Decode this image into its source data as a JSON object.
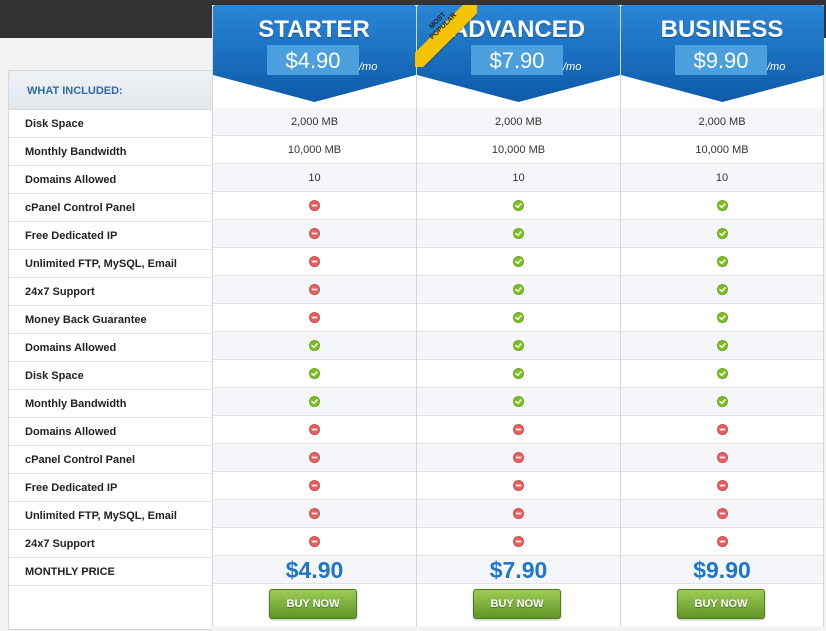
{
  "features": {
    "header": "WHAT INCLUDED:",
    "rows": [
      "Disk Space",
      "Monthly Bandwidth",
      "Domains Allowed",
      "cPanel Control Panel",
      "Free Dedicated IP",
      "Unlimited FTP, MySQL, Email",
      "24x7 Support",
      "Money Back Guarantee",
      "Domains Allowed",
      "Disk Space",
      "Monthly Bandwidth",
      "Domains Allowed",
      "cPanel Control Panel",
      "Free Dedicated IP",
      "Unlimited FTP, MySQL, Email",
      "24x7 Support",
      "MONTHLY PRICE"
    ]
  },
  "colors": {
    "header_blue": "#1c6fc2",
    "price_blue": "#1c76c9",
    "check_green": "#7cc11f",
    "cross_red": "#e04848",
    "buy_green": "#6fa32f",
    "ribbon_yellow": "#f5c400"
  },
  "plans": [
    {
      "name": "STARTER",
      "price": "$4.90",
      "unit": "/mo",
      "badge": "",
      "text_values": [
        "2,000 MB",
        "10,000 MB",
        "10"
      ],
      "icons": [
        "no",
        "no",
        "no",
        "no",
        "no",
        "yes",
        "yes",
        "yes",
        "no",
        "no",
        "no",
        "no",
        "no"
      ],
      "monthly_price": "$4.90",
      "button": "BUY NOW"
    },
    {
      "name": "ADVANCED",
      "price": "$7.90",
      "unit": "/mo",
      "badge": "MOST POPULAR",
      "badge_line1": "MOST",
      "badge_line2": "POPULAR",
      "text_values": [
        "2,000 MB",
        "10,000 MB",
        "10"
      ],
      "icons": [
        "yes",
        "yes",
        "yes",
        "yes",
        "yes",
        "yes",
        "yes",
        "yes",
        "no",
        "no",
        "no",
        "no",
        "no"
      ],
      "monthly_price": "$7.90",
      "button": "BUY NOW"
    },
    {
      "name": "BUSINESS",
      "price": "$9.90",
      "unit": "/mo",
      "badge": "",
      "text_values": [
        "2,000 MB",
        "10,000 MB",
        "10"
      ],
      "icons": [
        "yes",
        "yes",
        "yes",
        "yes",
        "yes",
        "yes",
        "yes",
        "yes",
        "no",
        "no",
        "no",
        "no",
        "no"
      ],
      "monthly_price": "$9.90",
      "button": "BUY NOW"
    }
  ]
}
